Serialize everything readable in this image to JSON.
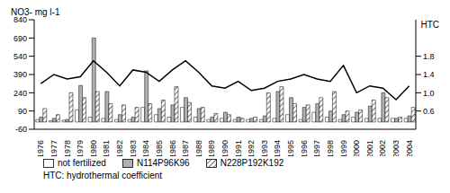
{
  "chart_data": {
    "type": "bar",
    "y_label": "NO3- mg l-1",
    "y2_label": "HTC",
    "annotation": "HTC: hydrothermal coefficient",
    "categories": [
      "1976",
      "1977",
      "1978",
      "1979",
      "1980",
      "1981",
      "1982",
      "1983",
      "1984",
      "1985",
      "1986",
      "1987",
      "1988",
      "1989",
      "1990",
      "1991",
      "1992",
      "1993",
      "1994",
      "1995",
      "1996",
      "1997",
      "1998",
      "1999",
      "2000",
      "2001",
      "2002",
      "2003",
      "2004"
    ],
    "ylim": [
      -60,
      840
    ],
    "yticks": [
      -60,
      90,
      240,
      390,
      540,
      690,
      840
    ],
    "y2lim": [
      0.2,
      2.6
    ],
    "y2ticks": [
      {
        "value": 0.6,
        "label": "0.6"
      },
      {
        "value": 1.0,
        "label": "1.0"
      },
      {
        "value": 1.4,
        "label": "1.4"
      },
      {
        "value": 1.8,
        "label": "1.8"
      }
    ],
    "legend": "bottom",
    "series": [
      {
        "name": "not fertilized",
        "type": "bar",
        "color": "#ffffff",
        "values": [
          20,
          10,
          15,
          100,
          40,
          30,
          20,
          20,
          120,
          60,
          40,
          120,
          40,
          20,
          30,
          20,
          20,
          20,
          30,
          60,
          20,
          80,
          40,
          20,
          40,
          30,
          30,
          30,
          30
        ]
      },
      {
        "name": "N114P96K96",
        "type": "bar",
        "color": "#b0b0b0",
        "values": [
          40,
          30,
          20,
          300,
          690,
          250,
          60,
          40,
          420,
          110,
          140,
          200,
          110,
          40,
          80,
          40,
          30,
          50,
          250,
          200,
          120,
          150,
          90,
          60,
          80,
          130,
          240,
          30,
          50
        ]
      },
      {
        "name": "N228P192K192",
        "type": "bar",
        "color": "#444444",
        "marker": "hatched",
        "values": [
          110,
          60,
          240,
          200,
          250,
          150,
          140,
          120,
          150,
          180,
          290,
          160,
          120,
          70,
          60,
          30,
          40,
          240,
          290,
          150,
          140,
          200,
          250,
          90,
          100,
          180,
          200,
          40,
          120
        ]
      },
      {
        "name": "HTC",
        "type": "line",
        "axis": "y2",
        "color": "#000000",
        "values": [
          1.2,
          1.4,
          1.3,
          1.35,
          1.7,
          1.45,
          1.15,
          1.5,
          1.45,
          1.25,
          1.5,
          1.7,
          1.45,
          1.15,
          1.1,
          1.25,
          1.05,
          1.1,
          1.25,
          1.3,
          1.4,
          1.3,
          1.25,
          1.6,
          1.0,
          1.15,
          1.1,
          0.85,
          1.15
        ]
      }
    ]
  }
}
